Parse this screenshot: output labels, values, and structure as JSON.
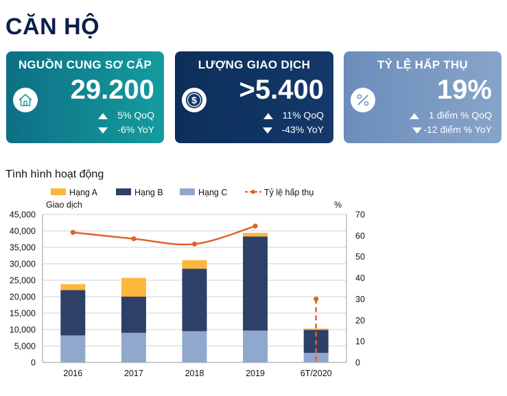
{
  "page": {
    "title": "CĂN HỘ",
    "subtitle": "Tình hình hoạt động"
  },
  "cards": [
    {
      "label": "NGUỒN CUNG SƠ CẤP",
      "value": "29.200",
      "line1": "5% QoQ",
      "line2": "-6% YoY",
      "icon": "house-icon"
    },
    {
      "label": "LƯỢNG GIAO DỊCH",
      "value": ">5.400",
      "line1": "11% QoQ",
      "line2": "-43% YoY",
      "icon": "dollar-coin-icon"
    },
    {
      "label": "TỶ LỆ HẤP THỤ",
      "value": "19%",
      "line1": "1 điểm % QoQ",
      "line2": "-12 điểm % YoY",
      "icon": "percent-icon"
    }
  ],
  "chart_data": {
    "type": "bar",
    "stacked": true,
    "categories": [
      "2016",
      "2017",
      "2018",
      "2019",
      "6T/2020"
    ],
    "series": [
      {
        "name": "Hạng C",
        "values": [
          8200,
          9000,
          9500,
          9700,
          2900
        ],
        "color": "#8fa8cb"
      },
      {
        "name": "Hạng B",
        "values": [
          13800,
          11000,
          19000,
          28600,
          7000
        ],
        "color": "#2e4068"
      },
      {
        "name": "Hạng A",
        "values": [
          1800,
          5700,
          2600,
          1100,
          400
        ],
        "color": "#fdb73b"
      }
    ],
    "line_series": {
      "name": "Tỷ lệ hấp thụ",
      "values": [
        61.5,
        58.5,
        56,
        64.5,
        30
      ],
      "color": "#e0622a",
      "axis": "right"
    },
    "legend_order": [
      "Hạng A",
      "Hạng B",
      "Hạng C",
      "Tỷ lệ hấp thụ"
    ],
    "ylabel_left": "Giao dịch",
    "ylabel_right": "%",
    "ylim_left": [
      0,
      45000
    ],
    "ylim_right": [
      0,
      70
    ],
    "yticks_left": [
      "0",
      "5,000",
      "10,000",
      "15,000",
      "20,000",
      "25,000",
      "30,000",
      "35,000",
      "40,000",
      "45,000"
    ],
    "yticks_right": [
      "0",
      "10",
      "20",
      "30",
      "40",
      "50",
      "60",
      "70"
    ],
    "legend_position": "top",
    "grid": true
  }
}
